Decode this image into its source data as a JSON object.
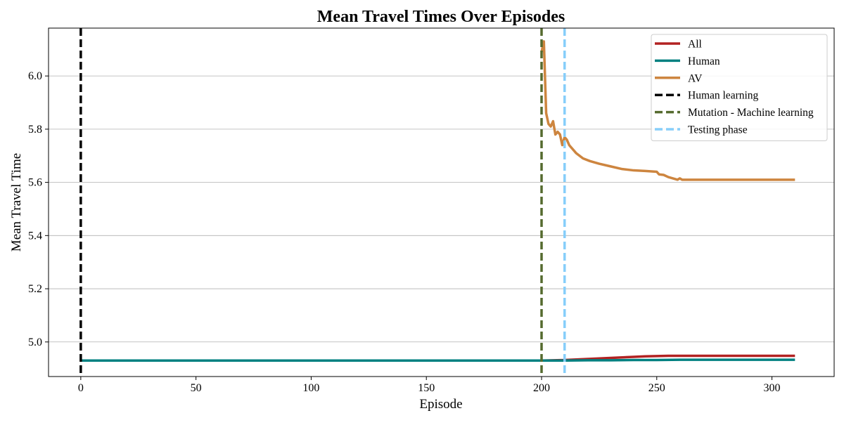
{
  "chart_data": {
    "type": "line",
    "title": "Mean Travel Times Over Episodes",
    "xlabel": "Episode",
    "ylabel": "Mean Travel Time",
    "xlim": [
      -14,
      327
    ],
    "ylim": [
      4.87,
      6.18
    ],
    "xticks": [
      0,
      50,
      100,
      150,
      200,
      250,
      300
    ],
    "yticks": [
      5.0,
      5.2,
      5.4,
      5.6,
      5.8,
      6.0
    ],
    "ytick_labels": [
      "5.0",
      "5.2",
      "5.4",
      "5.6",
      "5.8",
      "6.0"
    ],
    "grid": "horizontal",
    "legend_position": "top-right",
    "series": [
      {
        "name": "All",
        "color": "#b22222",
        "x": [
          0,
          50,
          100,
          150,
          200,
          205,
          210,
          215,
          220,
          225,
          230,
          235,
          240,
          245,
          250,
          255,
          260,
          270,
          280,
          290,
          300,
          310
        ],
        "y": [
          4.93,
          4.93,
          4.93,
          4.93,
          4.93,
          4.931,
          4.932,
          4.934,
          4.936,
          4.938,
          4.94,
          4.942,
          4.944,
          4.946,
          4.947,
          4.948,
          4.948,
          4.948,
          4.948,
          4.948,
          4.948,
          4.948
        ]
      },
      {
        "name": "Human",
        "color": "#008080",
        "x": [
          0,
          50,
          100,
          150,
          200,
          210,
          220,
          230,
          240,
          250,
          260,
          280,
          300,
          310
        ],
        "y": [
          4.93,
          4.93,
          4.93,
          4.93,
          4.93,
          4.93,
          4.931,
          4.931,
          4.932,
          4.932,
          4.933,
          4.933,
          4.933,
          4.933
        ]
      },
      {
        "name": "AV",
        "color": "#cd853f",
        "x": [
          200,
          201,
          202,
          203,
          204,
          205,
          206,
          207,
          208,
          209,
          210,
          211,
          212,
          213,
          215,
          218,
          221,
          225,
          230,
          235,
          240,
          245,
          250,
          251,
          253,
          255,
          257,
          259,
          260,
          261,
          262,
          265,
          270,
          280,
          290,
          300,
          310
        ],
        "y": [
          6.09,
          6.13,
          5.86,
          5.82,
          5.81,
          5.83,
          5.78,
          5.79,
          5.78,
          5.74,
          5.77,
          5.76,
          5.74,
          5.73,
          5.71,
          5.69,
          5.68,
          5.67,
          5.66,
          5.65,
          5.645,
          5.643,
          5.64,
          5.63,
          5.628,
          5.62,
          5.615,
          5.61,
          5.615,
          5.61,
          5.61,
          5.61,
          5.61,
          5.61,
          5.61,
          5.61,
          5.61
        ]
      }
    ],
    "phase_markers": [
      {
        "name": "Human learning",
        "x": 0,
        "color": "#000000"
      },
      {
        "name": "Mutation - Machine learning",
        "x": 200,
        "color": "#556b2f"
      },
      {
        "name": "Testing phase",
        "x": 210,
        "color": "#87cefa"
      }
    ]
  }
}
